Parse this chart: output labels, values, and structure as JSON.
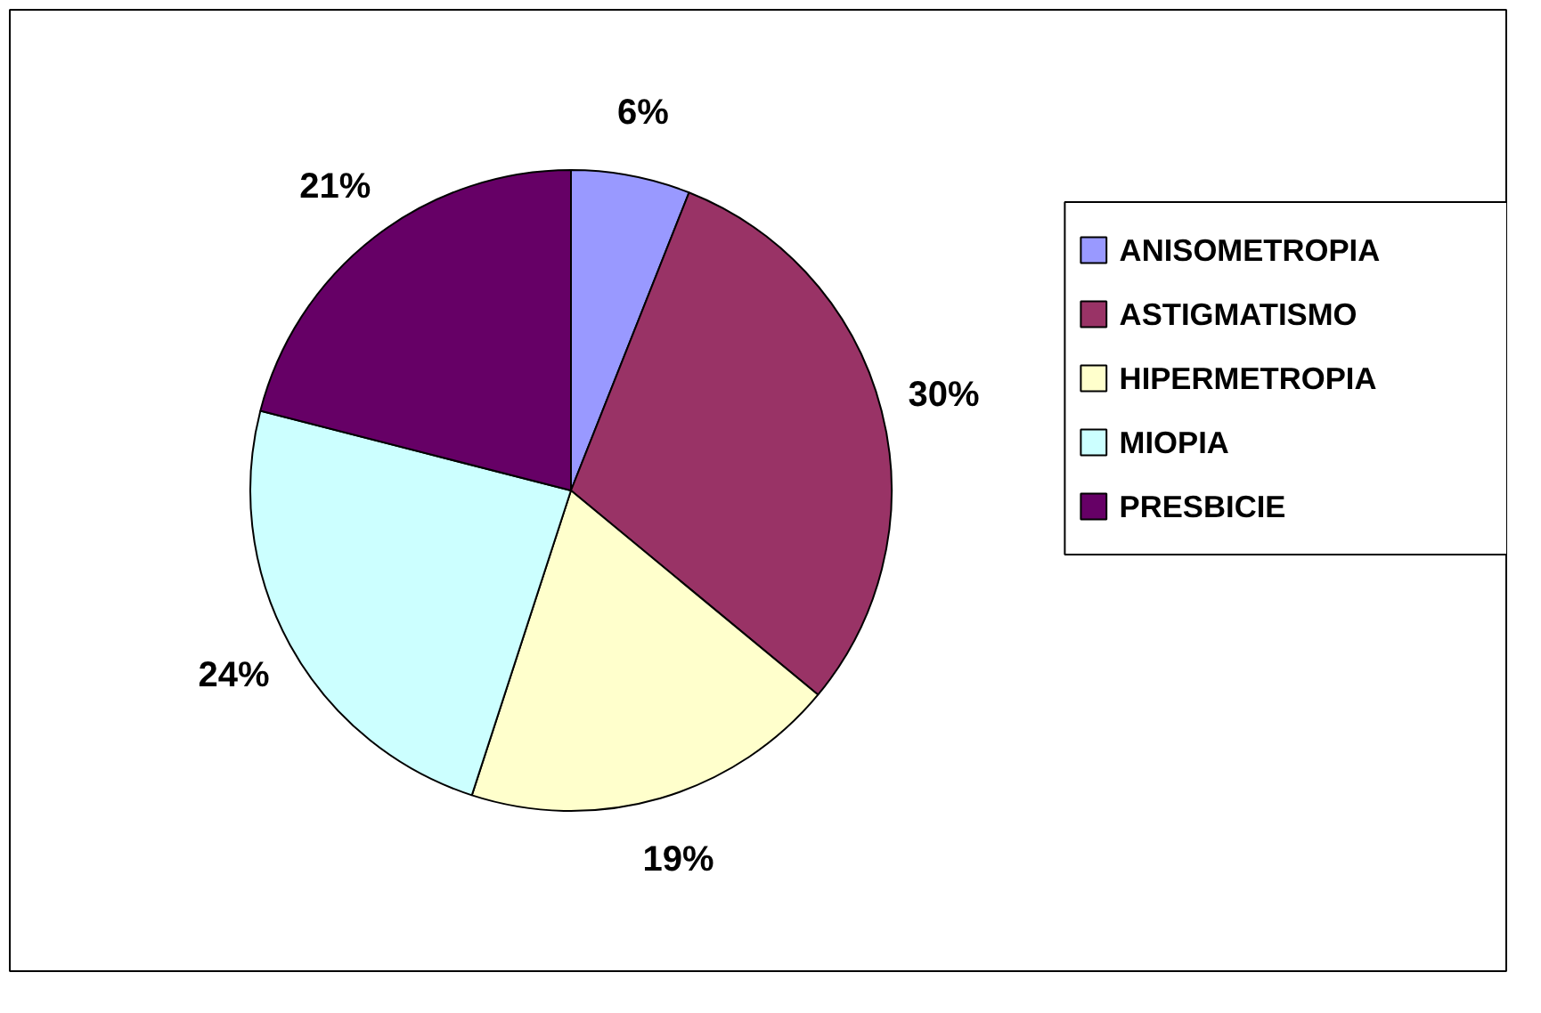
{
  "chart_data": {
    "type": "pie",
    "categories": [
      "ANISOMETROPIA",
      "ASTIGMATISMO",
      "HIPERMETROPIA",
      "MIOPIA",
      "PRESBICIE"
    ],
    "values": [
      6,
      30,
      19,
      24,
      21
    ],
    "colors": [
      "#9999ff",
      "#993366",
      "#ffffcc",
      "#ccffff",
      "#660066"
    ],
    "value_labels": [
      "6%",
      "30%",
      "19%",
      "24%",
      "21%"
    ],
    "legend": "right"
  }
}
